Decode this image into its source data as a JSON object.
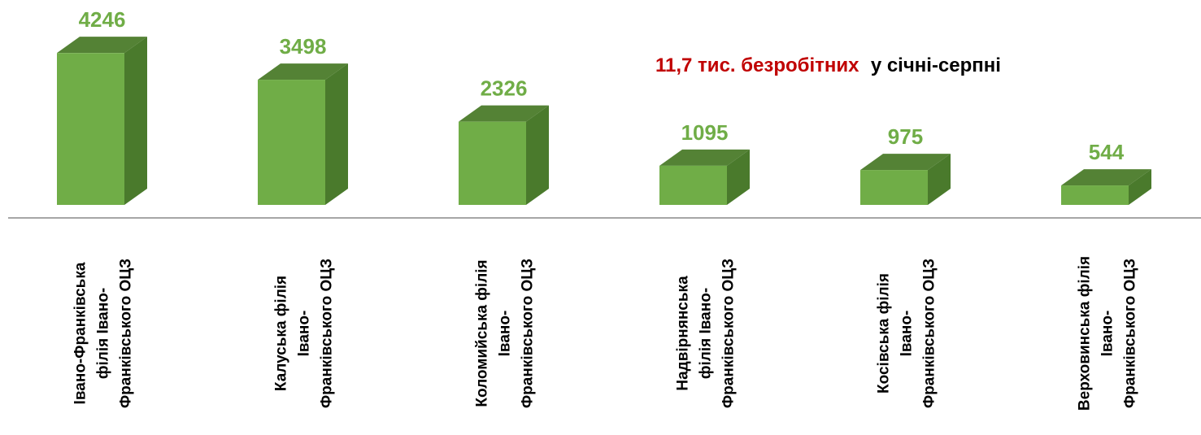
{
  "chart_data": {
    "type": "bar3d",
    "categories": [
      "Івано-Франківська філія Івано-Франківського ОЦЗ",
      "Калуська філія Івано-Франківського ОЦЗ",
      "Коломийська філія Івано-Франківського ОЦЗ",
      "Надвірнянська філія Івано-Франківського ОЦЗ",
      "Косівська філія Івано-Франківського ОЦЗ",
      "Верховинська філія Івано-Франківського ОЦЗ"
    ],
    "values": [
      4246,
      3498,
      2326,
      1095,
      975,
      544
    ],
    "color": "#70ad47",
    "annotations": [
      "11,7 тис. безробітних",
      "у січні-серпні"
    ],
    "annotation_colors": [
      "#c00000",
      "#000000"
    ]
  }
}
